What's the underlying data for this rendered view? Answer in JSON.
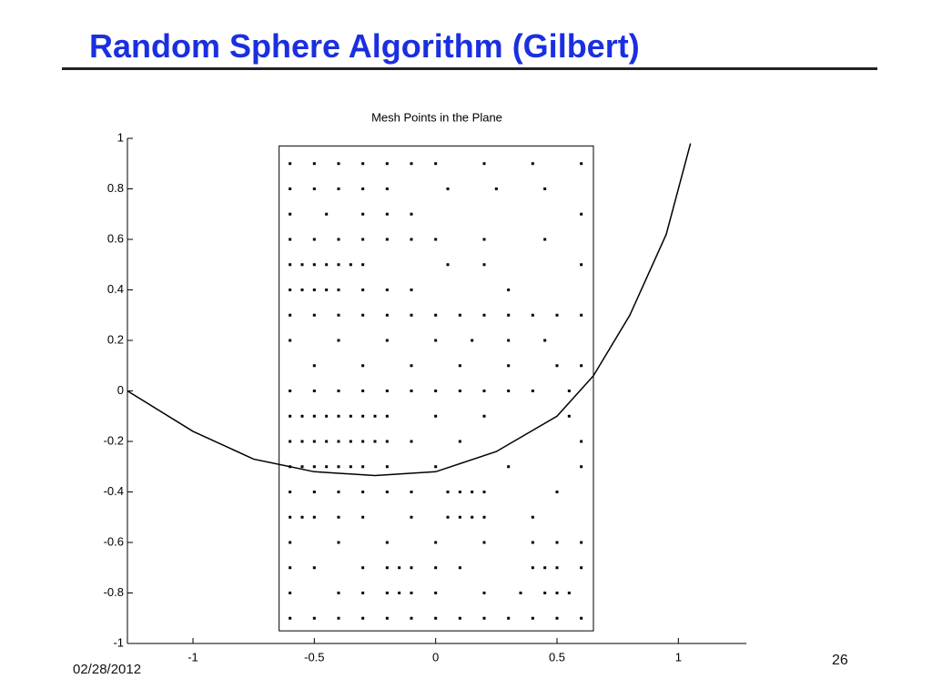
{
  "slide": {
    "title": "Random Sphere Algorithm (Gilbert)",
    "date": "02/28/2012",
    "page_number": "26"
  },
  "chart_data": {
    "type": "scatter",
    "title": "Mesh Points in the Plane",
    "xlim": [
      -1.27,
      1.28
    ],
    "ylim": [
      -1,
      1
    ],
    "xticks": [
      -1,
      -0.5,
      0,
      0.5,
      1
    ],
    "yticks": [
      -1,
      -0.8,
      -0.6,
      -0.4,
      -0.2,
      0,
      0.2,
      0.4,
      0.6,
      0.8,
      1
    ],
    "box": {
      "x": [
        -0.645,
        0.65
      ],
      "y": [
        -0.95,
        0.97
      ]
    },
    "series": [
      {
        "type": "scatter",
        "color": "#000000",
        "x": [
          -0.6,
          -0.5,
          -0.4,
          -0.3,
          -0.2,
          -0.1,
          0,
          0.2,
          0.4,
          0.6,
          -0.6,
          -0.5,
          -0.4,
          -0.3,
          -0.2,
          0.05,
          0.25,
          0.45,
          -0.6,
          -0.45,
          -0.3,
          -0.2,
          -0.1,
          0.6,
          -0.6,
          -0.5,
          -0.4,
          -0.3,
          -0.2,
          -0.1,
          0,
          0.2,
          0.45,
          -0.6,
          -0.55,
          -0.5,
          -0.45,
          -0.4,
          -0.35,
          -0.3,
          0.05,
          0.2,
          0.6,
          -0.6,
          -0.55,
          -0.5,
          -0.45,
          -0.4,
          -0.3,
          -0.2,
          -0.1,
          0.3,
          -0.6,
          -0.5,
          -0.4,
          -0.3,
          -0.2,
          -0.1,
          0,
          0.1,
          0.2,
          0.3,
          0.4,
          0.5,
          0.6,
          -0.6,
          -0.4,
          -0.2,
          0,
          0.15,
          0.3,
          0.45,
          -0.5,
          -0.3,
          -0.1,
          0.1,
          0.3,
          0.5,
          0.6,
          -0.6,
          -0.5,
          -0.4,
          -0.3,
          -0.2,
          -0.1,
          0,
          0.1,
          0.2,
          0.3,
          0.4,
          0.55,
          -0.6,
          -0.55,
          -0.5,
          -0.45,
          -0.4,
          -0.35,
          -0.3,
          -0.25,
          -0.2,
          0,
          0.2,
          0.55,
          -0.6,
          -0.55,
          -0.5,
          -0.45,
          -0.4,
          -0.35,
          -0.3,
          -0.25,
          -0.2,
          -0.1,
          0.1,
          0.6,
          -0.6,
          -0.55,
          -0.5,
          -0.45,
          -0.4,
          -0.35,
          -0.3,
          -0.2,
          0,
          0.3,
          0.6,
          -0.6,
          -0.5,
          -0.4,
          -0.3,
          -0.2,
          -0.1,
          0.05,
          0.1,
          0.15,
          0.2,
          0.5,
          -0.6,
          -0.55,
          -0.5,
          -0.4,
          -0.3,
          -0.1,
          0.05,
          0.1,
          0.15,
          0.2,
          0.4,
          -0.6,
          -0.4,
          -0.2,
          0,
          0.2,
          0.4,
          0.5,
          0.6,
          -0.6,
          -0.5,
          -0.3,
          -0.2,
          -0.15,
          -0.1,
          0,
          0.1,
          0.4,
          0.45,
          0.5,
          0.6,
          -0.6,
          -0.4,
          -0.3,
          -0.2,
          -0.15,
          -0.1,
          0,
          0.2,
          0.35,
          0.45,
          0.5,
          0.55,
          -0.6,
          -0.5,
          -0.4,
          -0.3,
          -0.2,
          -0.1,
          0,
          0.1,
          0.2,
          0.3,
          0.4,
          0.5,
          0.6
        ],
        "values": [
          0.9,
          0.9,
          0.9,
          0.9,
          0.9,
          0.9,
          0.9,
          0.9,
          0.9,
          0.9,
          0.8,
          0.8,
          0.8,
          0.8,
          0.8,
          0.8,
          0.8,
          0.8,
          0.7,
          0.7,
          0.7,
          0.7,
          0.7,
          0.7,
          0.6,
          0.6,
          0.6,
          0.6,
          0.6,
          0.6,
          0.6,
          0.6,
          0.6,
          0.5,
          0.5,
          0.5,
          0.5,
          0.5,
          0.5,
          0.5,
          0.5,
          0.5,
          0.5,
          0.4,
          0.4,
          0.4,
          0.4,
          0.4,
          0.4,
          0.4,
          0.4,
          0.4,
          0.3,
          0.3,
          0.3,
          0.3,
          0.3,
          0.3,
          0.3,
          0.3,
          0.3,
          0.3,
          0.3,
          0.3,
          0.3,
          0.2,
          0.2,
          0.2,
          0.2,
          0.2,
          0.2,
          0.2,
          0.1,
          0.1,
          0.1,
          0.1,
          0.1,
          0.1,
          0.1,
          0,
          0,
          0,
          0,
          0,
          0,
          0,
          0,
          0,
          0,
          0,
          0,
          -0.1,
          -0.1,
          -0.1,
          -0.1,
          -0.1,
          -0.1,
          -0.1,
          -0.1,
          -0.1,
          -0.1,
          -0.1,
          -0.1,
          -0.2,
          -0.2,
          -0.2,
          -0.2,
          -0.2,
          -0.2,
          -0.2,
          -0.2,
          -0.2,
          -0.2,
          -0.2,
          -0.2,
          -0.3,
          -0.3,
          -0.3,
          -0.3,
          -0.3,
          -0.3,
          -0.3,
          -0.3,
          -0.3,
          -0.3,
          -0.3,
          -0.4,
          -0.4,
          -0.4,
          -0.4,
          -0.4,
          -0.4,
          -0.4,
          -0.4,
          -0.4,
          -0.4,
          -0.4,
          -0.5,
          -0.5,
          -0.5,
          -0.5,
          -0.5,
          -0.5,
          -0.5,
          -0.5,
          -0.5,
          -0.5,
          -0.5,
          -0.6,
          -0.6,
          -0.6,
          -0.6,
          -0.6,
          -0.6,
          -0.6,
          -0.6,
          -0.7,
          -0.7,
          -0.7,
          -0.7,
          -0.7,
          -0.7,
          -0.7,
          -0.7,
          -0.7,
          -0.7,
          -0.7,
          -0.7,
          -0.8,
          -0.8,
          -0.8,
          -0.8,
          -0.8,
          -0.8,
          -0.8,
          -0.8,
          -0.8,
          -0.8,
          -0.8,
          -0.8,
          -0.9,
          -0.9,
          -0.9,
          -0.9,
          -0.9,
          -0.9,
          -0.9,
          -0.9,
          -0.9,
          -0.9,
          -0.9,
          -0.9,
          -0.9
        ]
      },
      {
        "type": "line",
        "color": "#000000",
        "x": [
          -1.27,
          -1.0,
          -0.75,
          -0.5,
          -0.25,
          0,
          0.25,
          0.5,
          0.65,
          0.8,
          0.95,
          1.05
        ],
        "values": [
          0.0,
          -0.16,
          -0.27,
          -0.32,
          -0.335,
          -0.32,
          -0.24,
          -0.1,
          0.06,
          0.3,
          0.62,
          0.98
        ]
      }
    ]
  }
}
